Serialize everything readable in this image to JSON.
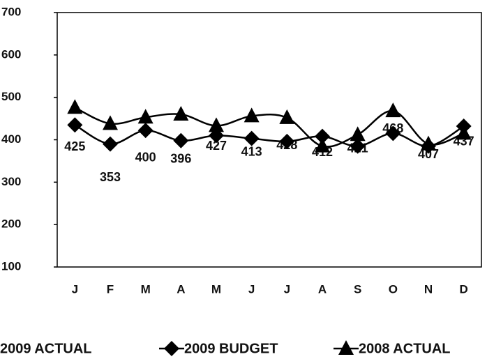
{
  "chart_data": {
    "type": "line",
    "categories": [
      "J",
      "F",
      "M",
      "A",
      "M",
      "J",
      "J",
      "A",
      "S",
      "O",
      "N",
      "D"
    ],
    "series": [
      {
        "name": "2009 ACTUAL",
        "color": "#ffffff",
        "marker": "none",
        "values": [
          425,
          353,
          400,
          396,
          427,
          413,
          428,
          412,
          421,
          468,
          407,
          437
        ]
      },
      {
        "name": "2009 BUDGET",
        "color": "#000000",
        "marker": "diamond",
        "values": [
          435,
          390,
          422,
          398,
          410,
          403,
          396,
          408,
          385,
          415,
          385,
          432
        ]
      },
      {
        "name": "2008 ACTUAL",
        "color": "#000000",
        "marker": "triangle",
        "values": [
          476,
          438,
          453,
          460,
          433,
          456,
          452,
          385,
          412,
          468,
          390,
          415
        ]
      }
    ],
    "ylim": [
      100,
      700
    ],
    "yticks": [
      100,
      200,
      300,
      400,
      500,
      600,
      700
    ],
    "legend": "bottom",
    "smooth": true
  }
}
